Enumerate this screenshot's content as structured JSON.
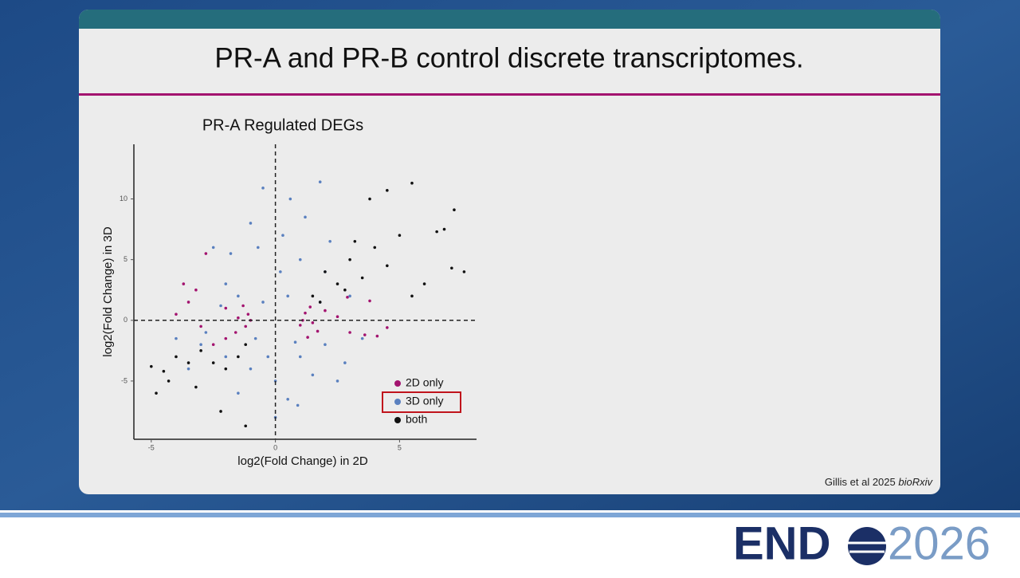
{
  "slide_title": "PR-A and PR-B control discrete transcriptomes.",
  "citation": {
    "authors": "Gillis et al 2025",
    "journal": "bioRxiv"
  },
  "logo": {
    "left": "END",
    "right": "2026"
  },
  "chart_data": {
    "type": "scatter",
    "title": "PR-A Regulated DEGs",
    "x_label": "log2(Fold Change) in 2D",
    "y_label": "log2(Fold Change) in 3D",
    "xlim": [
      -5.7,
      8.1
    ],
    "ylim": [
      -9.8,
      14.5
    ],
    "xticks": [
      -5,
      0,
      5
    ],
    "yticks": [
      -5,
      0,
      5,
      10
    ],
    "reference_lines": {
      "x": 0,
      "y": 0
    },
    "series": [
      {
        "name": "2D only",
        "color": "#a3136f",
        "x": [
          -1,
          -1.2,
          -1.1,
          1.1,
          1.2,
          1,
          -1.5,
          1.5,
          -3.5,
          -3,
          -2,
          2,
          2.5,
          3,
          -2.5,
          3.6,
          -3.7,
          -2.8,
          4.1,
          2.9,
          -1.6,
          1.7,
          -3.2,
          4.5,
          -2,
          1.4,
          -1.3,
          1.3,
          3.8,
          -4
        ],
        "y": [
          0,
          -0.5,
          0.5,
          0,
          0.6,
          -0.4,
          0.2,
          -0.2,
          1.5,
          -0.5,
          1,
          0.8,
          0.3,
          -1,
          -2,
          -1.2,
          3,
          5.5,
          -1.3,
          1.9,
          -1,
          -0.9,
          2.5,
          -0.6,
          -1.5,
          1.1,
          1.2,
          -1.4,
          1.6,
          0.5
        ]
      },
      {
        "name": "3D only",
        "color": "#5a80bf",
        "x": [
          -0.5,
          0.6,
          1.8,
          -1,
          0.3,
          -2.5,
          -2,
          -1.5,
          0.5,
          1,
          2,
          -3,
          -2,
          -1,
          0,
          1,
          2,
          -1.5,
          0.5,
          -3.5,
          2.5,
          3,
          -0.5,
          0.8,
          -0.8,
          1.5,
          -2.8,
          3.5,
          1.2,
          -1.8,
          0.2,
          -0.3,
          2.2,
          -4,
          0,
          1.8,
          -2.2,
          2.8,
          -0.7,
          0.9
        ],
        "y": [
          10.9,
          10,
          11.4,
          8,
          7,
          6,
          3,
          2,
          2,
          5,
          4,
          -2,
          -3,
          -4,
          -5,
          -3,
          -2,
          -6,
          -6.5,
          -4,
          -5,
          2,
          1.5,
          -1.8,
          -1.5,
          -4.5,
          -1,
          -1.5,
          8.5,
          5.5,
          4,
          -3,
          6.5,
          -1.5,
          -8,
          1.5,
          1.2,
          -3.5,
          6,
          -7
        ]
      },
      {
        "name": "both",
        "color": "#111111",
        "x": [
          7.2,
          6.8,
          6.5,
          5.5,
          4.5,
          3.8,
          5,
          4,
          3,
          2,
          1.5,
          2.5,
          3.5,
          4.5,
          6,
          5.5,
          7.1,
          7.6,
          -5,
          -4.8,
          -4.3,
          -4,
          -3.5,
          -3,
          -2.5,
          -2,
          -1.5,
          -1.2,
          -2.2,
          -1.2,
          -3.2,
          1.8,
          2.8,
          3.2,
          -4.5
        ],
        "y": [
          9.1,
          7.5,
          7.3,
          11.3,
          10.7,
          10,
          7,
          6,
          5,
          4,
          2,
          3,
          3.5,
          4.5,
          3,
          2,
          4.3,
          4,
          -3.8,
          -6,
          -5,
          -3,
          -3.5,
          -2.5,
          -3.5,
          -4,
          -3,
          -2,
          -7.5,
          -8.7,
          -5.5,
          1.5,
          2.5,
          6.5,
          -4.2
        ]
      }
    ]
  }
}
